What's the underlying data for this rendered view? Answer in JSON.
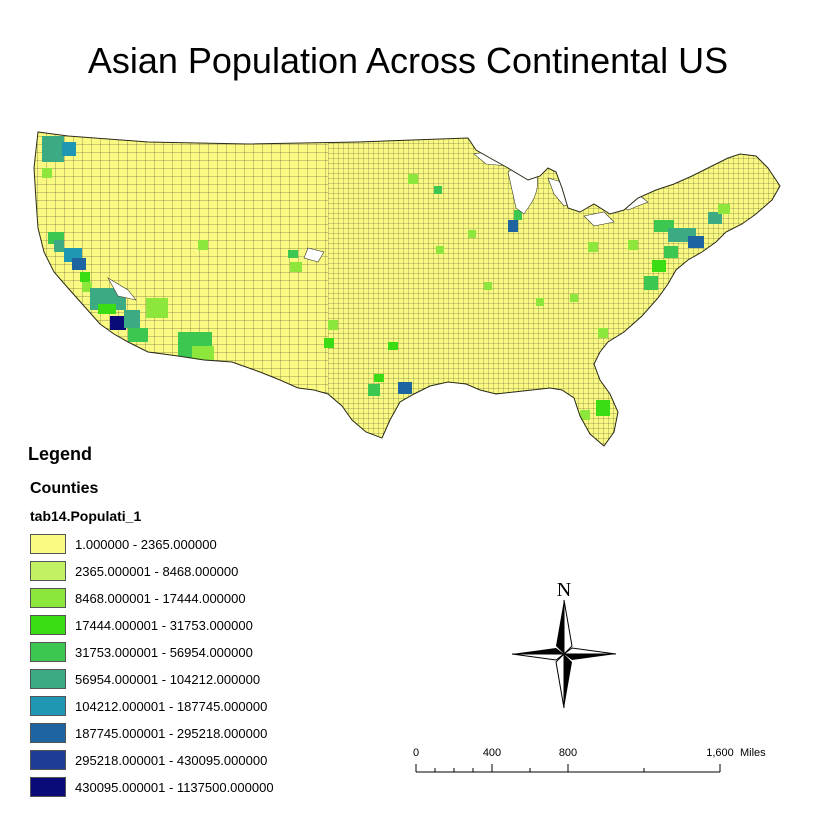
{
  "title": "Asian Population Across Continental US",
  "colors": {
    "county_fill": "#fafa82",
    "county_stroke": "#3a3a2a",
    "water": "#ffffff"
  },
  "legend": {
    "heading": "Legend",
    "layer": "Counties",
    "field": "tab14.Populati_1",
    "classes": [
      {
        "label": "1.000000 - 2365.000000",
        "color": "#fafa82"
      },
      {
        "label": "2365.000001 - 8468.000000",
        "color": "#c2f264"
      },
      {
        "label": "8468.000001 - 17444.000000",
        "color": "#8ce63c"
      },
      {
        "label": "17444.000001 - 31753.000000",
        "color": "#3cdc14"
      },
      {
        "label": "31753.000001 - 56954.000000",
        "color": "#3cc850"
      },
      {
        "label": "56954.000001 - 104212.000000",
        "color": "#3caa82"
      },
      {
        "label": "104212.000001 - 187745.000000",
        "color": "#1e96b4"
      },
      {
        "label": "187745.000001 - 295218.000000",
        "color": "#1e64a0"
      },
      {
        "label": "295218.000001 - 430095.000000",
        "color": "#1e3c96"
      },
      {
        "label": "430095.000001 - 1137500.000000",
        "color": "#0a0a78"
      }
    ]
  },
  "north_arrow": {
    "label": "N"
  },
  "scale_bar": {
    "ticks": [
      "0",
      "400",
      "800",
      "1,600"
    ],
    "unit": "Miles"
  }
}
